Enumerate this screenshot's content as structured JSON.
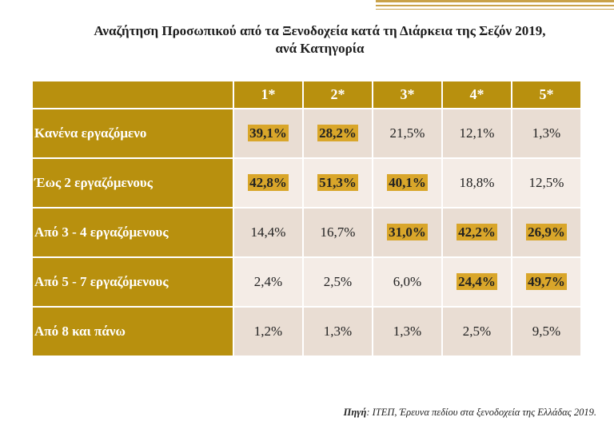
{
  "title_line1": "Αναζήτηση Προσωπικού από τα Ξενοδοχεία κατά τη Διάρκεια της Σεζόν 2019,",
  "title_line2": "ανά Κατηγορία",
  "columns": [
    "1*",
    "2*",
    "3*",
    "4*",
    "5*"
  ],
  "rows": [
    {
      "label": "Κανένα εργαζόμενο",
      "cells": [
        "39,1%",
        "28,2%",
        "21,5%",
        "12,1%",
        "1,3%"
      ],
      "highlight": [
        true,
        true,
        false,
        false,
        false
      ]
    },
    {
      "label": "Έως 2 εργαζόμενους",
      "cells": [
        "42,8%",
        "51,3%",
        "40,1%",
        "18,8%",
        "12,5%"
      ],
      "highlight": [
        true,
        true,
        true,
        false,
        false
      ]
    },
    {
      "label": "Από 3 - 4 εργαζόμενους",
      "cells": [
        "14,4%",
        "16,7%",
        "31,0%",
        "42,2%",
        "26,9%"
      ],
      "highlight": [
        false,
        false,
        true,
        true,
        true
      ]
    },
    {
      "label": "Από 5 - 7 εργαζόμενους",
      "cells": [
        "2,4%",
        "2,5%",
        "6,0%",
        "24,4%",
        "49,7%"
      ],
      "highlight": [
        false,
        false,
        false,
        true,
        true
      ]
    },
    {
      "label": "Από 8 και πάνω",
      "cells": [
        "1,2%",
        "1,3%",
        "1,3%",
        "2,5%",
        "9,5%"
      ],
      "highlight": [
        false,
        false,
        false,
        false,
        false
      ]
    }
  ],
  "source_label": "Πηγή",
  "source_text": ": ΙΤΕΠ, Έρευνα πεδίου στα ξενοδοχεία της Ελλάδας 2019.",
  "colors": {
    "gold": "#b8900e",
    "highlight": "#d9a62a",
    "row_shade": "#e9ddd3"
  }
}
